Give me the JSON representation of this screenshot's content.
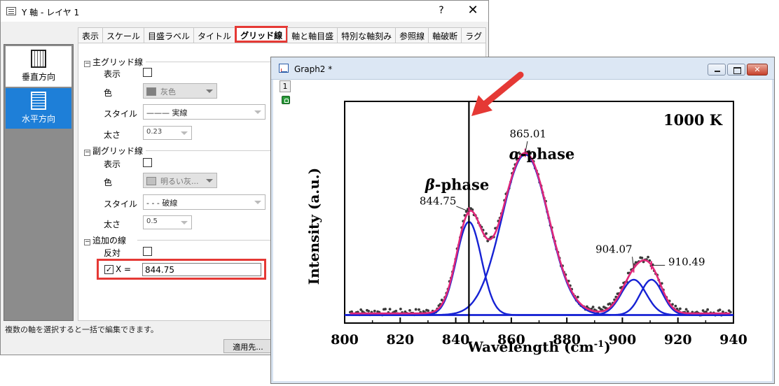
{
  "dialog": {
    "title": "Y 軸 - レイヤ 1",
    "help": "?",
    "close": "✕",
    "tabs": [
      {
        "label": "表示"
      },
      {
        "label": "スケール"
      },
      {
        "label": "目盛ラベル"
      },
      {
        "label": "タイトル"
      },
      {
        "label": "グリッド線",
        "active": true
      },
      {
        "label": "軸と軸目盛"
      },
      {
        "label": "特別な軸刻み"
      },
      {
        "label": "参照線"
      },
      {
        "label": "軸破断"
      },
      {
        "label": "ラグ"
      }
    ],
    "sidebar": {
      "vertical": "垂直方向",
      "horizontal": "水平方向"
    },
    "major_grid": {
      "header": "主グリッド線",
      "show_label": "表示",
      "show_checked": false,
      "color_label": "色",
      "color_value": "灰色",
      "color_swatch": "#808080",
      "style_label": "スタイル",
      "style_value": "——— 実線",
      "width_label": "太さ",
      "width_value": "0.23"
    },
    "minor_grid": {
      "header": "副グリッド線",
      "show_label": "表示",
      "show_checked": false,
      "color_label": "色",
      "color_value": "明るい灰...",
      "color_swatch": "#c0c0c0",
      "style_label": "スタイル",
      "style_value": "- - - 破線",
      "width_label": "太さ",
      "width_value": "0.5"
    },
    "additional_lines": {
      "header": "追加の線",
      "opposite_label": "反対",
      "opposite_checked": false,
      "x_checked": true,
      "x_label": "X =",
      "x_value": "844.75"
    },
    "status": "複数の軸を選択すると一括で編集できます。",
    "apply_label": "適用先..."
  },
  "graph": {
    "title": "Graph2 *",
    "layer": "1"
  },
  "chart_data": {
    "type": "line",
    "xlabel": "Wavelength (cm",
    "xlabel_sup": "-1",
    "xlabel_end": ")",
    "ylabel": "Intensity (a.u.)",
    "xlim": [
      800,
      940
    ],
    "xticks": [
      800,
      820,
      840,
      860,
      880,
      900,
      920,
      940
    ],
    "ylim": [
      -0.05,
      1.33
    ],
    "grid": false,
    "reference_line_x": 844.75,
    "baseline_y": 0,
    "temperature_label": "1000 K",
    "phase_labels": [
      {
        "text": "β-phase",
        "greek": "β",
        "rest": "-phase",
        "x": 840.5,
        "y": 0.78
      },
      {
        "text": "α-phase",
        "greek": "α",
        "rest": "-phase",
        "x": 871,
        "y": 0.97
      }
    ],
    "peaks": [
      {
        "label": "844.75",
        "center": 844.75,
        "height": 0.58,
        "sigma": 4.5
      },
      {
        "label": "865.01",
        "center": 865.01,
        "height": 1.0,
        "sigma": 8.4
      },
      {
        "label": "904.07",
        "center": 904.07,
        "height": 0.22,
        "sigma": 4.5
      },
      {
        "label": "910.49",
        "center": 910.49,
        "height": 0.22,
        "sigma": 4.0
      }
    ],
    "colors": {
      "data_points": "#3a3a3a",
      "fit_envelope": "#e0287a",
      "component_peaks": "#1622d4",
      "reference_line": "#000000",
      "baseline": "#444444",
      "markers": "#e0287a"
    },
    "arrow_color": "#e53935"
  }
}
